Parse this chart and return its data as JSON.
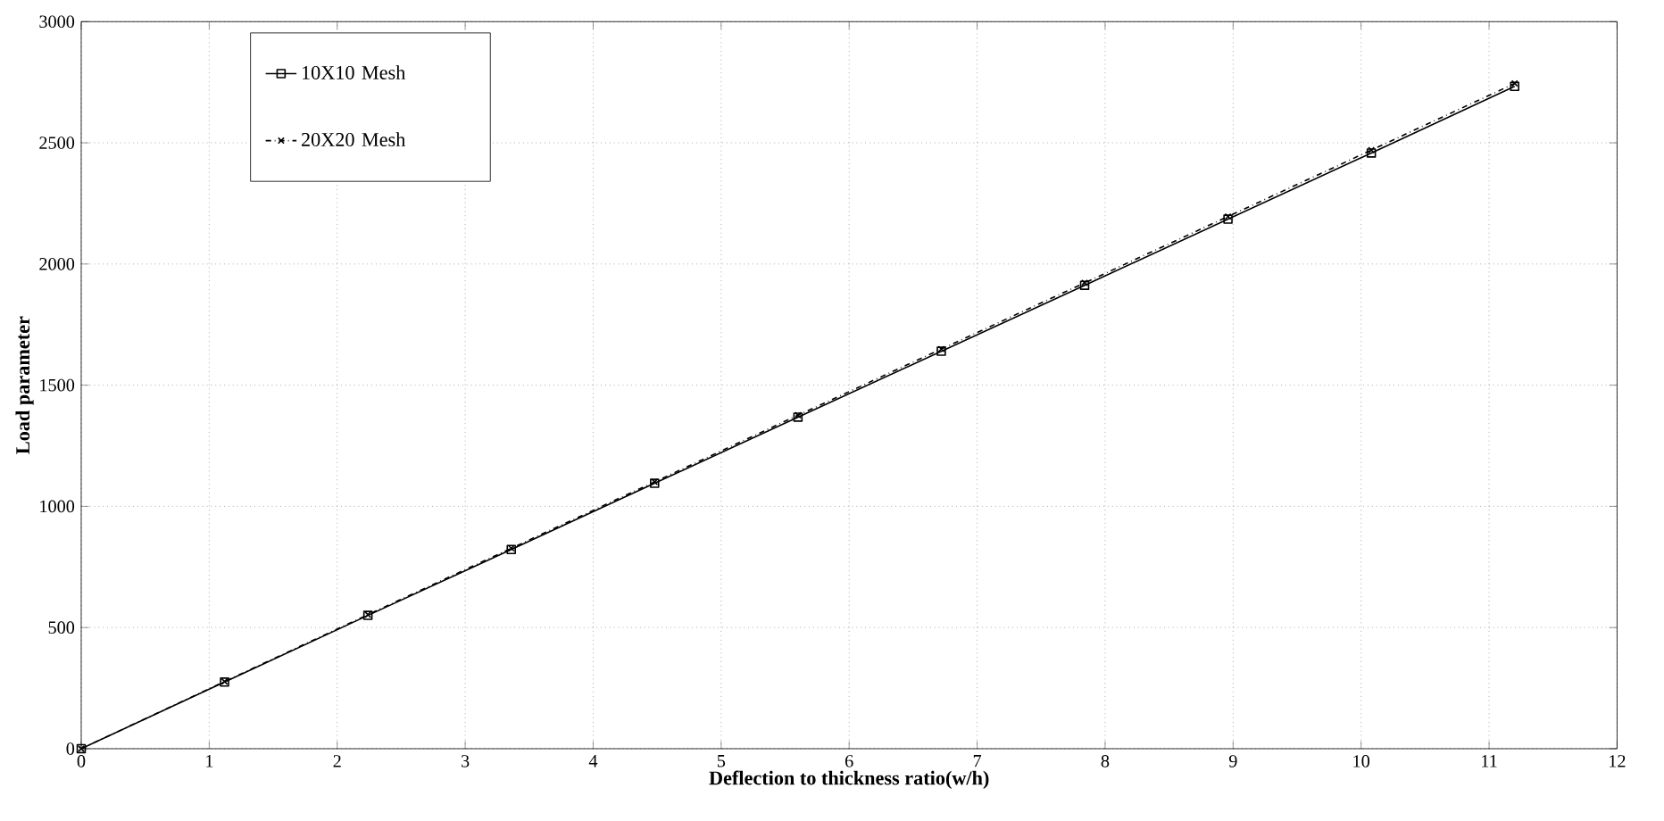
{
  "chart_data": {
    "type": "line",
    "xlabel": "Deflection to thickness ratio(w/h)",
    "ylabel": "Load parameter",
    "x": [
      0,
      1.12,
      2.24,
      3.36,
      4.48,
      5.6,
      6.72,
      7.84,
      8.96,
      10.08,
      11.2
    ],
    "series": [
      {
        "name": "10X10 Mesh",
        "color": "#000000",
        "marker": "square",
        "line_style": "solid",
        "values": [
          0,
          275,
          550,
          822,
          1095,
          1368,
          1640,
          1912,
          2185,
          2458,
          2733
        ]
      },
      {
        "name": "20X20 Mesh",
        "color": "#000000",
        "marker": "cross",
        "line_style": "dashdot",
        "values": [
          0,
          277,
          553,
          827,
          1101,
          1376,
          1649,
          1922,
          2196,
          2470,
          2745
        ]
      }
    ],
    "xlim": [
      0,
      12
    ],
    "ylim": [
      0,
      3000
    ],
    "xticks": [
      0,
      1,
      2,
      3,
      4,
      5,
      6,
      7,
      8,
      9,
      10,
      11,
      12
    ],
    "yticks": [
      0,
      500,
      1000,
      1500,
      2000,
      2500,
      3000
    ],
    "grid": true,
    "legend": "top left"
  }
}
